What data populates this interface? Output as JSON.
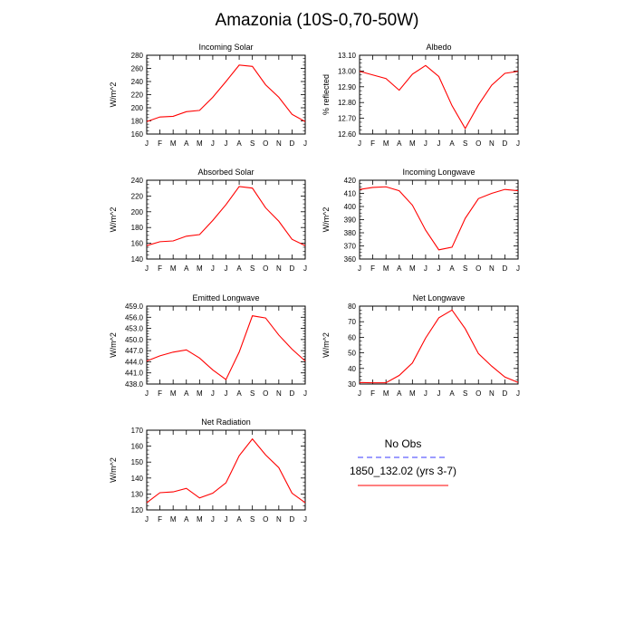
{
  "title": "Amazonia (10S-0,70-50W)",
  "months": [
    "J",
    "F",
    "M",
    "A",
    "M",
    "J",
    "J",
    "A",
    "S",
    "O",
    "N",
    "D",
    "J"
  ],
  "colors": {
    "model_line": "#ff0000",
    "obs_line": "#3a3aff",
    "axis": "#000000"
  },
  "chart_data": [
    {
      "type": "line",
      "title": "Incoming Solar",
      "xlabel": "",
      "ylabel": "W/m^2",
      "ylim": [
        160,
        280
      ],
      "yticks": [
        160,
        180,
        200,
        220,
        240,
        260,
        280
      ],
      "ytick_labels": [
        "160",
        "180",
        "200",
        "220",
        "240",
        "260",
        "280"
      ],
      "categories": [
        "J",
        "F",
        "M",
        "A",
        "M",
        "J",
        "J",
        "A",
        "S",
        "O",
        "N",
        "D",
        "J"
      ],
      "values": [
        179,
        186,
        187,
        194,
        196,
        216,
        240,
        265,
        263,
        235,
        216,
        190,
        179
      ]
    },
    {
      "type": "line",
      "title": "Albedo",
      "xlabel": "",
      "ylabel": "% reflected",
      "ylim": [
        12.6,
        13.1
      ],
      "yticks": [
        12.6,
        12.7,
        12.8,
        12.9,
        13.0,
        13.1
      ],
      "ytick_labels": [
        "12.60",
        "12.70",
        "12.80",
        "12.90",
        "13.00",
        "13.10"
      ],
      "categories": [
        "J",
        "F",
        "M",
        "A",
        "M",
        "J",
        "J",
        "A",
        "S",
        "O",
        "N",
        "D",
        "J"
      ],
      "values": [
        12.998,
        12.975,
        12.952,
        12.878,
        12.98,
        13.035,
        12.965,
        12.78,
        12.635,
        12.785,
        12.91,
        12.985,
        12.998
      ]
    },
    {
      "type": "line",
      "title": "Absorbed Solar",
      "xlabel": "",
      "ylabel": "W/m^2",
      "ylim": [
        140,
        240
      ],
      "yticks": [
        140,
        160,
        180,
        200,
        220,
        240
      ],
      "ytick_labels": [
        "140",
        "160",
        "180",
        "200",
        "220",
        "240"
      ],
      "categories": [
        "J",
        "F",
        "M",
        "A",
        "M",
        "J",
        "J",
        "A",
        "S",
        "O",
        "N",
        "D",
        "J"
      ],
      "values": [
        157,
        162,
        163,
        169,
        171,
        189,
        209,
        232,
        230,
        205,
        188,
        165,
        157
      ]
    },
    {
      "type": "line",
      "title": "Incoming Longwave",
      "xlabel": "",
      "ylabel": "W/m^2",
      "ylim": [
        360,
        420
      ],
      "yticks": [
        360,
        370,
        380,
        390,
        400,
        410,
        420
      ],
      "ytick_labels": [
        "360",
        "370",
        "380",
        "390",
        "400",
        "410",
        "420"
      ],
      "categories": [
        "J",
        "F",
        "M",
        "A",
        "M",
        "J",
        "J",
        "A",
        "S",
        "O",
        "N",
        "D",
        "J"
      ],
      "values": [
        413,
        414.5,
        415,
        412,
        401,
        382,
        367,
        369,
        391,
        406,
        410,
        413,
        412
      ]
    },
    {
      "type": "line",
      "title": "Emitted Longwave",
      "xlabel": "",
      "ylabel": "W/m^2",
      "ylim": [
        438,
        459
      ],
      "yticks": [
        438,
        441,
        444,
        447,
        450,
        453,
        456,
        459
      ],
      "ytick_labels": [
        "438.0",
        "441.0",
        "444.0",
        "447.0",
        "450.0",
        "453.0",
        "456.0",
        "459.0"
      ],
      "categories": [
        "J",
        "F",
        "M",
        "A",
        "M",
        "J",
        "J",
        "A",
        "S",
        "O",
        "N",
        "D",
        "J"
      ],
      "values": [
        444.2,
        445.6,
        446.6,
        447.2,
        445,
        441.8,
        439.2,
        446.6,
        456.4,
        455.8,
        451.2,
        447.4,
        444.2
      ]
    },
    {
      "type": "line",
      "title": "Net Longwave",
      "xlabel": "",
      "ylabel": "W/m^2",
      "ylim": [
        30,
        80
      ],
      "yticks": [
        30,
        40,
        50,
        60,
        70,
        80
      ],
      "ytick_labels": [
        "30",
        "40",
        "50",
        "60",
        "70",
        "80"
      ],
      "categories": [
        "J",
        "F",
        "M",
        "A",
        "M",
        "J",
        "J",
        "A",
        "S",
        "O",
        "N",
        "D",
        "J"
      ],
      "values": [
        31,
        30.8,
        30.8,
        35.5,
        43.5,
        59.5,
        72.5,
        77.5,
        65.5,
        49.5,
        41.5,
        34.5,
        31
      ]
    },
    {
      "type": "line",
      "title": "Net Radiation",
      "xlabel": "",
      "ylabel": "W/m^2",
      "ylim": [
        120,
        170
      ],
      "yticks": [
        120,
        130,
        140,
        150,
        160,
        170
      ],
      "ytick_labels": [
        "120",
        "130",
        "140",
        "150",
        "160",
        "170"
      ],
      "categories": [
        "J",
        "F",
        "M",
        "A",
        "M",
        "J",
        "J",
        "A",
        "S",
        "O",
        "N",
        "D",
        "J"
      ],
      "values": [
        124.5,
        130.8,
        131.3,
        133.5,
        127.5,
        130.5,
        137,
        154,
        164.5,
        154.5,
        146.5,
        130.5,
        124.5
      ]
    }
  ],
  "legend": {
    "obs_label": "No Obs",
    "model_label": "1850_132.02 (yrs 3-7)"
  }
}
